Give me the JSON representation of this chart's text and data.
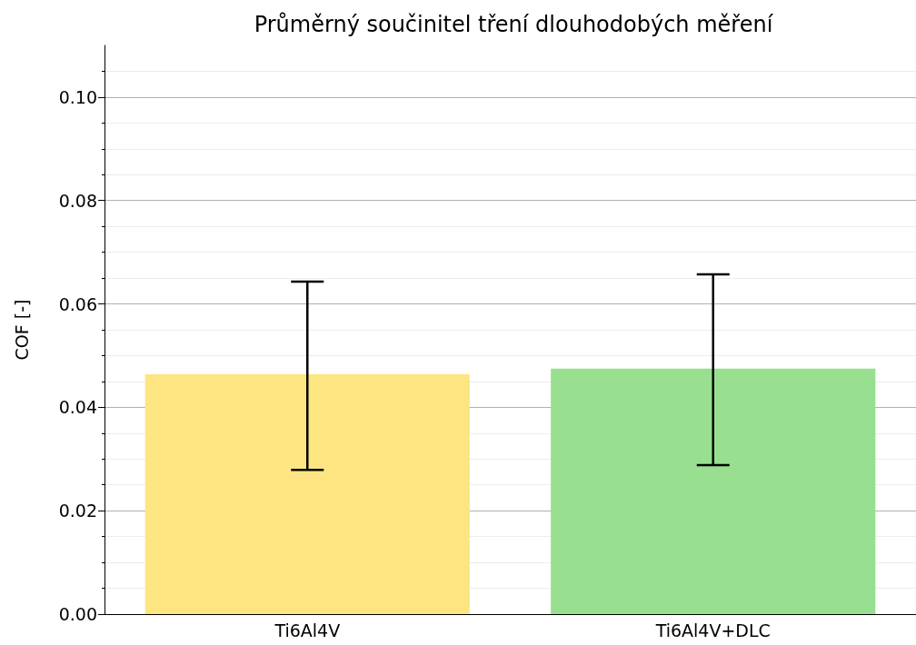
{
  "chart_data": {
    "type": "bar",
    "title": "Průměrný součinitel tření dlouhodobých měření",
    "ylabel": "COF [-]",
    "categories": [
      "Ti6Al4V",
      "Ti6Al4V+DLC"
    ],
    "values": [
      0.0464,
      0.0475
    ],
    "colors": [
      "#fde681",
      "#98e08f"
    ],
    "errors": [
      [
        0.0279,
        0.0643
      ],
      [
        0.0288,
        0.0657
      ]
    ],
    "ylim": [
      0,
      0.11
    ],
    "yticks": [
      {
        "value": 0,
        "label": "0.00"
      },
      {
        "value": 0.02,
        "label": "0.02"
      },
      {
        "value": 0.04,
        "label": "0.04"
      },
      {
        "value": 0.06,
        "label": "0.06"
      },
      {
        "value": 0.08,
        "label": "0.08"
      },
      {
        "value": 0.1,
        "label": "0.10"
      }
    ],
    "grid": "y"
  }
}
